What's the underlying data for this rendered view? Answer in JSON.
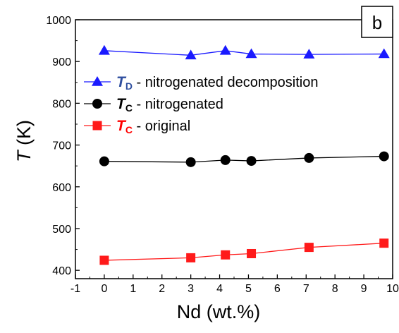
{
  "chart_data": {
    "type": "line",
    "panel_label": "b",
    "xlabel": "Nd (wt.%)",
    "ylabel_symbol": "T",
    "ylabel_unit": " (K)",
    "xlim": [
      -1,
      10
    ],
    "ylim": [
      380,
      1000
    ],
    "x_ticks": [
      -1,
      0,
      1,
      2,
      3,
      4,
      5,
      6,
      7,
      8,
      9,
      10
    ],
    "y_ticks": [
      400,
      500,
      600,
      700,
      800,
      900,
      1000
    ],
    "legend_position": "upper-left",
    "series": [
      {
        "symbol": "T",
        "subscript": "D",
        "desc": " - nitrogenated decomposition",
        "color": "#1a1aff",
        "label_color": "#2f4f9f",
        "marker": "triangle",
        "x": [
          0,
          3,
          4.2,
          5.1,
          7.1,
          9.7
        ],
        "y": [
          926,
          915,
          926,
          918,
          917,
          918
        ]
      },
      {
        "symbol": "T",
        "subscript": "C",
        "desc": " - nitrogenated",
        "color": "#000000",
        "label_color": "#000000",
        "marker": "circle",
        "x": [
          0,
          3,
          4.2,
          5.1,
          7.1,
          9.7
        ],
        "y": [
          661,
          659,
          664,
          662,
          669,
          673
        ]
      },
      {
        "symbol": "T",
        "subscript": "C",
        "desc": " - original",
        "color": "#ff1a1a",
        "label_color": "#ff0000",
        "marker": "square",
        "x": [
          0,
          3,
          4.2,
          5.1,
          7.1,
          9.7
        ],
        "y": [
          424,
          430,
          437,
          440,
          455,
          465
        ]
      }
    ]
  }
}
